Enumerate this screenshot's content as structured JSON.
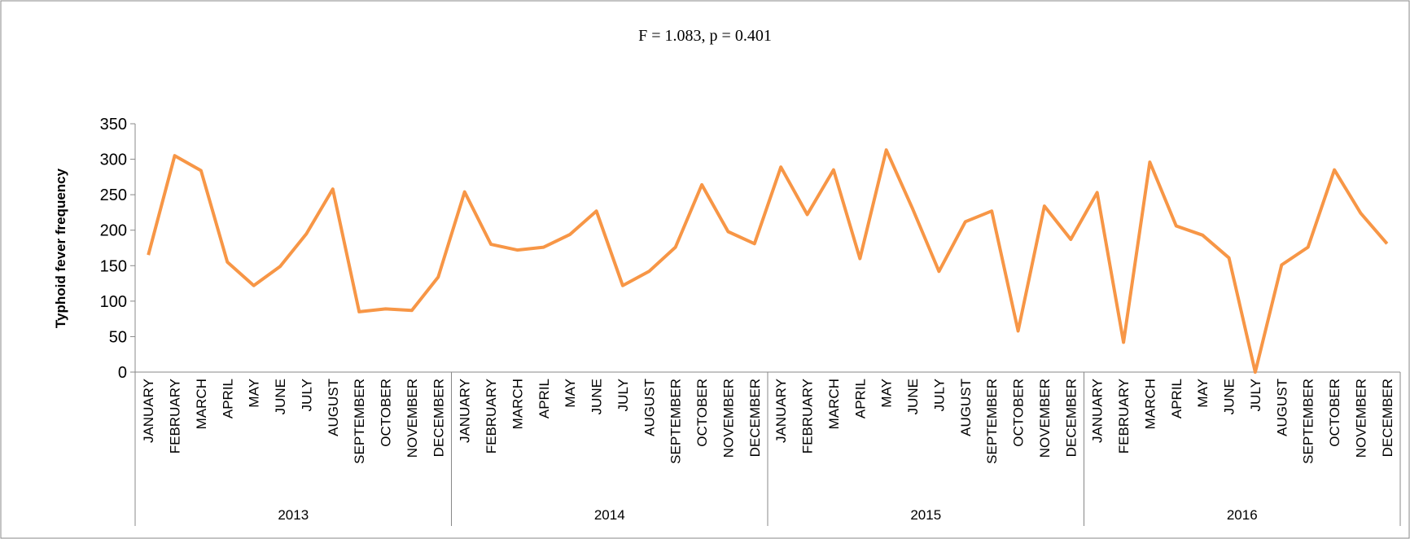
{
  "chart_data": {
    "type": "line",
    "title": "F = 1.083, p = 0.401",
    "y_label": "Typhoid fever frequency",
    "categories": [
      "JANUARY",
      "FEBRUARY",
      "MARCH",
      "APRIL",
      "MAY",
      "JUNE",
      "JULY",
      "AUGUST",
      "SEPTEMBER",
      "OCTOBER",
      "NOVEMBER",
      "DECEMBER",
      "JANUARY",
      "FEBRUARY",
      "MARCH",
      "APRIL",
      "MAY",
      "JUNE",
      "JULY",
      "AUGUST",
      "SEPTEMBER",
      "OCTOBER",
      "NOVEMBER",
      "DECEMBER",
      "JANUARY",
      "FEBRUARY",
      "MARCH",
      "APRIL",
      "MAY",
      "JUNE",
      "JULY",
      "AUGUST",
      "SEPTEMBER",
      "OCTOBER",
      "NOVEMBER",
      "DECEMBER",
      "JANUARY",
      "FEBRUARY",
      "MARCH",
      "APRIL",
      "MAY",
      "JUNE",
      "JULY",
      "AUGUST",
      "SEPTEMBER",
      "OCTOBER",
      "NOVEMBER",
      "DECEMBER"
    ],
    "groups": [
      "2013",
      "2014",
      "2015",
      "2016"
    ],
    "values": [
      165,
      305,
      284,
      155,
      122,
      149,
      195,
      258,
      85,
      89,
      87,
      134,
      254,
      180,
      172,
      176,
      194,
      227,
      122,
      142,
      176,
      264,
      198,
      181,
      289,
      222,
      285,
      160,
      313,
      230,
      142,
      212,
      227,
      58,
      234,
      187,
      253,
      42,
      296,
      206,
      193,
      161,
      0,
      151,
      176,
      285,
      224,
      181
    ],
    "color": "#f79646",
    "ylim": [
      0,
      350
    ],
    "yticks": [
      0,
      50,
      100,
      150,
      200,
      250,
      300,
      350
    ],
    "grid": false
  }
}
